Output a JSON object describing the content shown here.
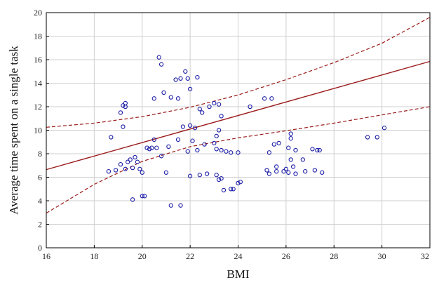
{
  "chart_data": {
    "type": "scatter",
    "title": "",
    "xlabel": "BMI",
    "ylabel": "Average time spent on a single task",
    "xlim": [
      16,
      32
    ],
    "ylim": [
      0,
      20
    ],
    "xticks": [
      "16",
      "18",
      "20",
      "22",
      "24",
      "26",
      "28",
      "30",
      "32"
    ],
    "yticks": [
      "0",
      "2",
      "4",
      "6",
      "8",
      "10",
      "12",
      "14",
      "16",
      "18",
      "20"
    ],
    "grid": true,
    "legend": "none",
    "point_color": "#1a1aa6",
    "fit_color": "#9b1b1b",
    "points": [
      [
        18.6,
        6.5
      ],
      [
        18.7,
        9.4
      ],
      [
        18.9,
        6.6
      ],
      [
        19.1,
        7.1
      ],
      [
        19.1,
        11.5
      ],
      [
        19.2,
        12.1
      ],
      [
        19.2,
        10.3
      ],
      [
        19.3,
        12.3
      ],
      [
        19.3,
        12.0
      ],
      [
        19.3,
        6.7
      ],
      [
        19.4,
        7.3
      ],
      [
        19.5,
        7.5
      ],
      [
        19.6,
        4.1
      ],
      [
        19.6,
        6.8
      ],
      [
        19.7,
        7.7
      ],
      [
        19.8,
        7.3
      ],
      [
        19.9,
        6.7
      ],
      [
        20.0,
        4.4
      ],
      [
        20.0,
        6.4
      ],
      [
        20.1,
        4.4
      ],
      [
        20.2,
        8.5
      ],
      [
        20.3,
        8.4
      ],
      [
        20.4,
        8.5
      ],
      [
        20.5,
        9.2
      ],
      [
        20.5,
        12.7
      ],
      [
        20.6,
        8.5
      ],
      [
        20.7,
        16.2
      ],
      [
        20.8,
        7.8
      ],
      [
        20.8,
        15.6
      ],
      [
        20.9,
        13.2
      ],
      [
        21.0,
        6.4
      ],
      [
        21.1,
        8.6
      ],
      [
        21.2,
        12.8
      ],
      [
        21.2,
        3.6
      ],
      [
        21.4,
        14.3
      ],
      [
        21.5,
        9.2
      ],
      [
        21.5,
        12.7
      ],
      [
        21.6,
        3.6
      ],
      [
        21.6,
        14.4
      ],
      [
        21.7,
        10.3
      ],
      [
        21.8,
        15.0
      ],
      [
        21.9,
        14.4
      ],
      [
        21.9,
        8.2
      ],
      [
        22.0,
        10.4
      ],
      [
        22.0,
        13.5
      ],
      [
        22.0,
        6.1
      ],
      [
        22.1,
        9.1
      ],
      [
        22.2,
        10.2
      ],
      [
        22.3,
        14.5
      ],
      [
        22.3,
        8.3
      ],
      [
        22.4,
        11.8
      ],
      [
        22.4,
        6.2
      ],
      [
        22.5,
        11.5
      ],
      [
        22.6,
        8.8
      ],
      [
        22.7,
        6.3
      ],
      [
        22.8,
        12.0
      ],
      [
        23.0,
        12.3
      ],
      [
        23.0,
        8.9
      ],
      [
        23.1,
        9.5
      ],
      [
        23.1,
        8.4
      ],
      [
        23.1,
        6.2
      ],
      [
        23.2,
        12.2
      ],
      [
        23.2,
        10.0
      ],
      [
        23.2,
        5.8
      ],
      [
        23.3,
        11.2
      ],
      [
        23.3,
        8.3
      ],
      [
        23.3,
        5.9
      ],
      [
        23.4,
        4.9
      ],
      [
        23.5,
        8.2
      ],
      [
        23.7,
        8.1
      ],
      [
        23.7,
        5.0
      ],
      [
        23.8,
        5.0
      ],
      [
        24.0,
        8.1
      ],
      [
        24.0,
        5.5
      ],
      [
        24.1,
        5.6
      ],
      [
        24.5,
        12.0
      ],
      [
        25.1,
        12.7
      ],
      [
        25.2,
        6.6
      ],
      [
        25.3,
        8.1
      ],
      [
        25.3,
        6.3
      ],
      [
        25.4,
        12.7
      ],
      [
        25.5,
        8.8
      ],
      [
        25.6,
        6.9
      ],
      [
        25.6,
        6.5
      ],
      [
        25.7,
        8.9
      ],
      [
        25.9,
        6.5
      ],
      [
        26.0,
        6.7
      ],
      [
        26.1,
        6.4
      ],
      [
        26.1,
        8.5
      ],
      [
        26.2,
        9.7
      ],
      [
        26.2,
        9.3
      ],
      [
        26.2,
        7.5
      ],
      [
        26.3,
        6.9
      ],
      [
        26.4,
        8.3
      ],
      [
        26.4,
        6.3
      ],
      [
        26.7,
        7.5
      ],
      [
        26.8,
        6.5
      ],
      [
        27.1,
        8.4
      ],
      [
        27.2,
        6.6
      ],
      [
        27.3,
        8.3
      ],
      [
        27.4,
        8.3
      ],
      [
        27.5,
        6.4
      ],
      [
        29.4,
        9.4
      ],
      [
        29.8,
        9.4
      ],
      [
        30.1,
        10.2
      ]
    ],
    "fit_line": {
      "x": [
        16,
        32
      ],
      "y": [
        6.65,
        15.85
      ]
    },
    "confidence_upper": {
      "x": [
        16,
        18,
        20,
        22,
        24,
        26,
        28,
        30,
        32
      ],
      "y": [
        10.25,
        10.6,
        11.15,
        11.95,
        13.0,
        14.3,
        15.75,
        17.4,
        19.6
      ]
    },
    "confidence_lower": {
      "x": [
        16,
        18,
        20,
        22,
        24,
        26,
        28,
        30,
        32
      ],
      "y": [
        2.95,
        5.4,
        7.35,
        8.6,
        9.35,
        9.95,
        10.6,
        11.3,
        12.0
      ]
    }
  }
}
